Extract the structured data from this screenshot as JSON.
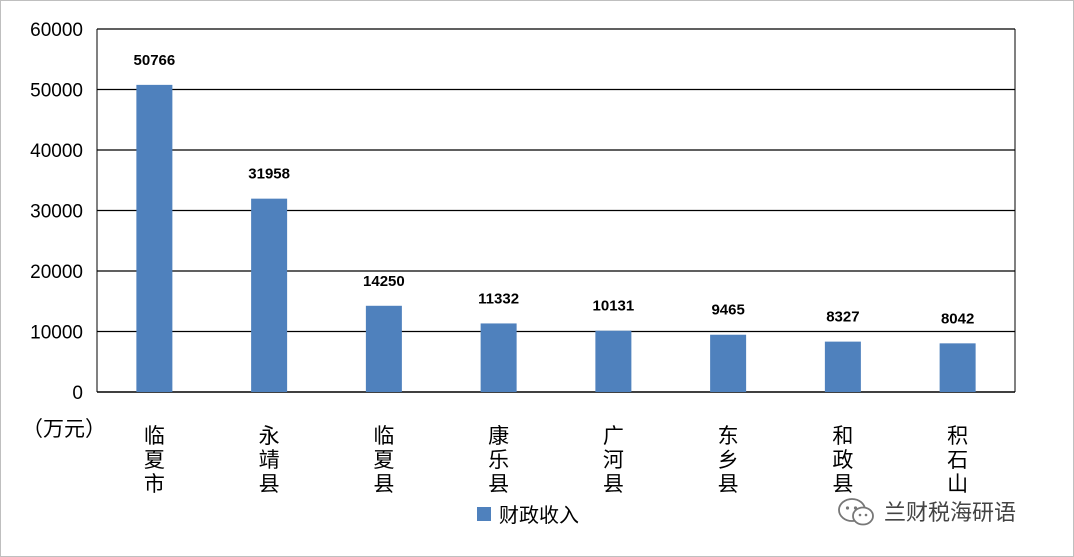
{
  "chart_data": {
    "type": "bar",
    "title": "",
    "xlabel": "",
    "ylabel": "（万元）",
    "categories": [
      "临夏市",
      "永靖县",
      "临夏县",
      "康乐县",
      "广河县",
      "东乡县",
      "和政县",
      "积石山"
    ],
    "series": [
      {
        "name": "财政收入",
        "color": "#4f81bd",
        "values": [
          50766,
          31958,
          14250,
          11332,
          10131,
          9465,
          8327,
          8042
        ]
      }
    ],
    "ylim": [
      0,
      60000
    ],
    "yticks": [
      0,
      10000,
      20000,
      30000,
      40000,
      50000,
      60000
    ],
    "grid": true,
    "legend": "bottom"
  },
  "watermark": {
    "text": "兰财税海研语",
    "icon": "wechat-icon"
  }
}
